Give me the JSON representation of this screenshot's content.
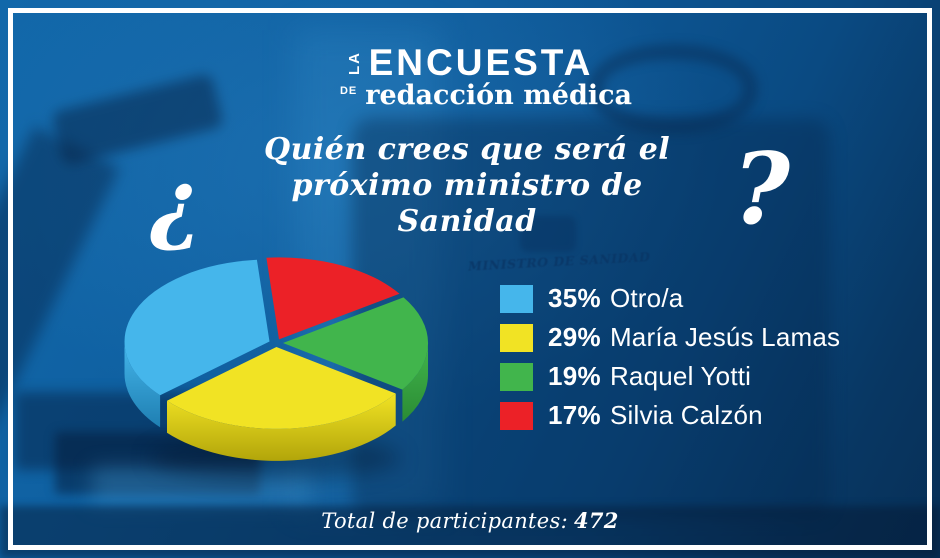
{
  "logo": {
    "la": "LA",
    "encuesta": "ENCUESTA",
    "de": "DE",
    "brand": "redacción médica"
  },
  "question": {
    "open_mark": "¿",
    "line1": "Quién crees que será el",
    "line2": "próximo ministro de Sanidad",
    "close_mark": "?"
  },
  "background": {
    "briefcase_label": "MINISTRO DE SANIDAD"
  },
  "chart_data": {
    "type": "pie",
    "style": "3d-exploded",
    "title": "¿Quién crees que será el próximo ministro de Sanidad?",
    "legend_position": "right",
    "start_angle_deg": -5,
    "draw_order": [
      3,
      2,
      1,
      0
    ],
    "series": [
      {
        "label": "Otro/a",
        "percent": 35,
        "color": "#45b6eb",
        "side_color": "#1f7fb2"
      },
      {
        "label": "María Jesús Lamas",
        "percent": 29,
        "color": "#f1e324",
        "side_color": "#b2a50a"
      },
      {
        "label": "Raquel Yotti",
        "percent": 19,
        "color": "#41b54c",
        "side_color": "#2b8c34"
      },
      {
        "label": "Silvia Calzón",
        "percent": 17,
        "color": "#ec2127",
        "side_color": "#aa1319"
      }
    ],
    "total_participants": 472
  },
  "footer": {
    "label": "Total de participantes:",
    "value": "472"
  }
}
